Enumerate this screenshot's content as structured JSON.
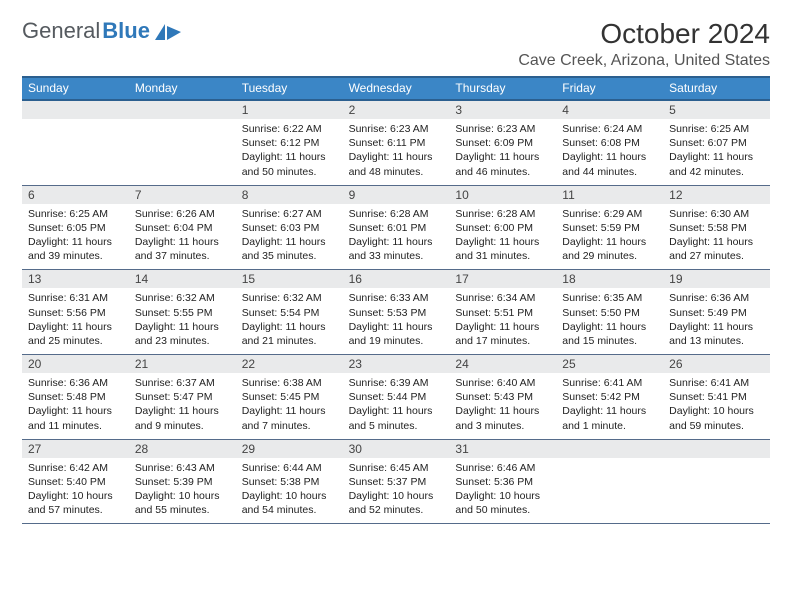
{
  "brand": {
    "part1": "General",
    "part2": "Blue"
  },
  "title": "October 2024",
  "location": "Cave Creek, Arizona, United States",
  "colors": {
    "header_bg": "#3b86c6",
    "header_border": "#2b5f8f",
    "daynum_bg": "#e9eaeb",
    "week_border": "#556b8a"
  },
  "day_headers": [
    "Sunday",
    "Monday",
    "Tuesday",
    "Wednesday",
    "Thursday",
    "Friday",
    "Saturday"
  ],
  "weeks": [
    {
      "nums": [
        "",
        "",
        "1",
        "2",
        "3",
        "4",
        "5"
      ],
      "cells": [
        {
          "sunrise": "",
          "sunset": "",
          "daylight": ""
        },
        {
          "sunrise": "",
          "sunset": "",
          "daylight": ""
        },
        {
          "sunrise": "Sunrise: 6:22 AM",
          "sunset": "Sunset: 6:12 PM",
          "daylight": "Daylight: 11 hours and 50 minutes."
        },
        {
          "sunrise": "Sunrise: 6:23 AM",
          "sunset": "Sunset: 6:11 PM",
          "daylight": "Daylight: 11 hours and 48 minutes."
        },
        {
          "sunrise": "Sunrise: 6:23 AM",
          "sunset": "Sunset: 6:09 PM",
          "daylight": "Daylight: 11 hours and 46 minutes."
        },
        {
          "sunrise": "Sunrise: 6:24 AM",
          "sunset": "Sunset: 6:08 PM",
          "daylight": "Daylight: 11 hours and 44 minutes."
        },
        {
          "sunrise": "Sunrise: 6:25 AM",
          "sunset": "Sunset: 6:07 PM",
          "daylight": "Daylight: 11 hours and 42 minutes."
        }
      ]
    },
    {
      "nums": [
        "6",
        "7",
        "8",
        "9",
        "10",
        "11",
        "12"
      ],
      "cells": [
        {
          "sunrise": "Sunrise: 6:25 AM",
          "sunset": "Sunset: 6:05 PM",
          "daylight": "Daylight: 11 hours and 39 minutes."
        },
        {
          "sunrise": "Sunrise: 6:26 AM",
          "sunset": "Sunset: 6:04 PM",
          "daylight": "Daylight: 11 hours and 37 minutes."
        },
        {
          "sunrise": "Sunrise: 6:27 AM",
          "sunset": "Sunset: 6:03 PM",
          "daylight": "Daylight: 11 hours and 35 minutes."
        },
        {
          "sunrise": "Sunrise: 6:28 AM",
          "sunset": "Sunset: 6:01 PM",
          "daylight": "Daylight: 11 hours and 33 minutes."
        },
        {
          "sunrise": "Sunrise: 6:28 AM",
          "sunset": "Sunset: 6:00 PM",
          "daylight": "Daylight: 11 hours and 31 minutes."
        },
        {
          "sunrise": "Sunrise: 6:29 AM",
          "sunset": "Sunset: 5:59 PM",
          "daylight": "Daylight: 11 hours and 29 minutes."
        },
        {
          "sunrise": "Sunrise: 6:30 AM",
          "sunset": "Sunset: 5:58 PM",
          "daylight": "Daylight: 11 hours and 27 minutes."
        }
      ]
    },
    {
      "nums": [
        "13",
        "14",
        "15",
        "16",
        "17",
        "18",
        "19"
      ],
      "cells": [
        {
          "sunrise": "Sunrise: 6:31 AM",
          "sunset": "Sunset: 5:56 PM",
          "daylight": "Daylight: 11 hours and 25 minutes."
        },
        {
          "sunrise": "Sunrise: 6:32 AM",
          "sunset": "Sunset: 5:55 PM",
          "daylight": "Daylight: 11 hours and 23 minutes."
        },
        {
          "sunrise": "Sunrise: 6:32 AM",
          "sunset": "Sunset: 5:54 PM",
          "daylight": "Daylight: 11 hours and 21 minutes."
        },
        {
          "sunrise": "Sunrise: 6:33 AM",
          "sunset": "Sunset: 5:53 PM",
          "daylight": "Daylight: 11 hours and 19 minutes."
        },
        {
          "sunrise": "Sunrise: 6:34 AM",
          "sunset": "Sunset: 5:51 PM",
          "daylight": "Daylight: 11 hours and 17 minutes."
        },
        {
          "sunrise": "Sunrise: 6:35 AM",
          "sunset": "Sunset: 5:50 PM",
          "daylight": "Daylight: 11 hours and 15 minutes."
        },
        {
          "sunrise": "Sunrise: 6:36 AM",
          "sunset": "Sunset: 5:49 PM",
          "daylight": "Daylight: 11 hours and 13 minutes."
        }
      ]
    },
    {
      "nums": [
        "20",
        "21",
        "22",
        "23",
        "24",
        "25",
        "26"
      ],
      "cells": [
        {
          "sunrise": "Sunrise: 6:36 AM",
          "sunset": "Sunset: 5:48 PM",
          "daylight": "Daylight: 11 hours and 11 minutes."
        },
        {
          "sunrise": "Sunrise: 6:37 AM",
          "sunset": "Sunset: 5:47 PM",
          "daylight": "Daylight: 11 hours and 9 minutes."
        },
        {
          "sunrise": "Sunrise: 6:38 AM",
          "sunset": "Sunset: 5:45 PM",
          "daylight": "Daylight: 11 hours and 7 minutes."
        },
        {
          "sunrise": "Sunrise: 6:39 AM",
          "sunset": "Sunset: 5:44 PM",
          "daylight": "Daylight: 11 hours and 5 minutes."
        },
        {
          "sunrise": "Sunrise: 6:40 AM",
          "sunset": "Sunset: 5:43 PM",
          "daylight": "Daylight: 11 hours and 3 minutes."
        },
        {
          "sunrise": "Sunrise: 6:41 AM",
          "sunset": "Sunset: 5:42 PM",
          "daylight": "Daylight: 11 hours and 1 minute."
        },
        {
          "sunrise": "Sunrise: 6:41 AM",
          "sunset": "Sunset: 5:41 PM",
          "daylight": "Daylight: 10 hours and 59 minutes."
        }
      ]
    },
    {
      "nums": [
        "27",
        "28",
        "29",
        "30",
        "31",
        "",
        ""
      ],
      "cells": [
        {
          "sunrise": "Sunrise: 6:42 AM",
          "sunset": "Sunset: 5:40 PM",
          "daylight": "Daylight: 10 hours and 57 minutes."
        },
        {
          "sunrise": "Sunrise: 6:43 AM",
          "sunset": "Sunset: 5:39 PM",
          "daylight": "Daylight: 10 hours and 55 minutes."
        },
        {
          "sunrise": "Sunrise: 6:44 AM",
          "sunset": "Sunset: 5:38 PM",
          "daylight": "Daylight: 10 hours and 54 minutes."
        },
        {
          "sunrise": "Sunrise: 6:45 AM",
          "sunset": "Sunset: 5:37 PM",
          "daylight": "Daylight: 10 hours and 52 minutes."
        },
        {
          "sunrise": "Sunrise: 6:46 AM",
          "sunset": "Sunset: 5:36 PM",
          "daylight": "Daylight: 10 hours and 50 minutes."
        },
        {
          "sunrise": "",
          "sunset": "",
          "daylight": ""
        },
        {
          "sunrise": "",
          "sunset": "",
          "daylight": ""
        }
      ]
    }
  ]
}
